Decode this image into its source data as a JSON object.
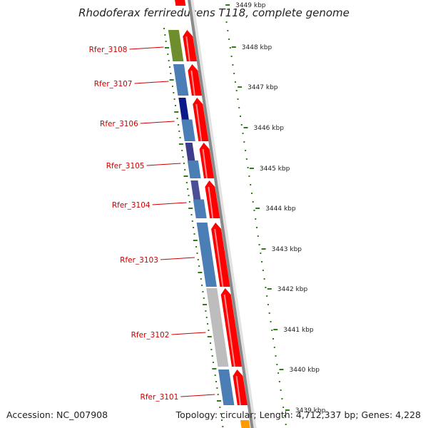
{
  "title": "Rhodoferax ferrireducens T118, complete genome",
  "footer": {
    "accession": "Accession: NC_007908",
    "topology": "Topology: circular; Length: 4,712,337 bp; Genes: 4,228"
  },
  "ruler": {
    "labels": [
      "3449 kbp",
      "3448 kbp",
      "3447 kbp",
      "3446 kbp",
      "3445 kbp",
      "3444 kbp",
      "3443 kbp",
      "3442 kbp",
      "3441 kbp",
      "3440 kbp",
      "3439 kbp"
    ]
  },
  "genes": [
    {
      "name": "Rfer_3108",
      "colors": [
        "#6e8e2e"
      ]
    },
    {
      "name": "Rfer_3107",
      "colors": [
        "#4a7eb5"
      ]
    },
    {
      "name": "Rfer_3106",
      "colors": [
        "#0a1a88",
        "#4a7eb5"
      ]
    },
    {
      "name": "Rfer_3105",
      "colors": [
        "#3d3c8c",
        "#4a7eb5"
      ]
    },
    {
      "name": "Rfer_3104",
      "colors": [
        "#4a4f97",
        "#4a7eb5"
      ]
    },
    {
      "name": "Rfer_3103",
      "colors": [
        "#4a7eb5"
      ]
    },
    {
      "name": "Rfer_3102",
      "colors": [
        "#bdbdbd"
      ]
    },
    {
      "name": "Rfer_3101",
      "colors": [
        "#4a7eb5"
      ]
    }
  ],
  "colors": {
    "strand_feature": "#ff0000",
    "backbone": "#8a8a8a",
    "gc_ticks": "#2e7d16",
    "label": "#cc0000",
    "orange_feature": "#ff9900"
  }
}
